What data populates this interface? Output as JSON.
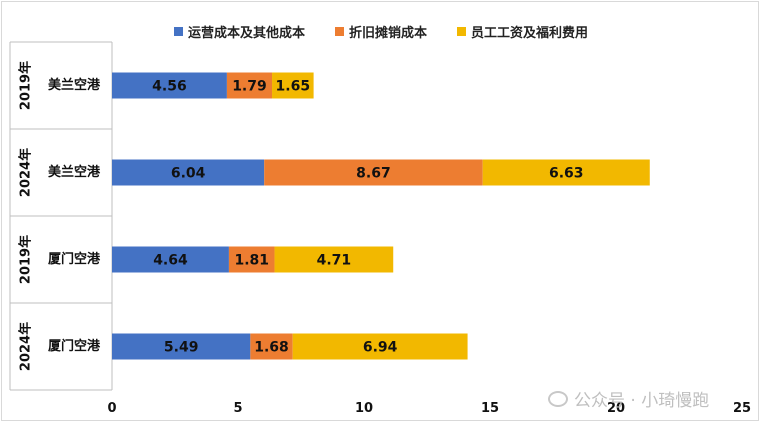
{
  "chart_data": {
    "type": "bar",
    "orientation": "horizontal",
    "stacked": true,
    "categories": [
      {
        "year": "2019年",
        "airport": "美兰空港"
      },
      {
        "year": "2024年",
        "airport": "美兰空港"
      },
      {
        "year": "2019年",
        "airport": "厦门空港"
      },
      {
        "year": "2024年",
        "airport": "厦门空港"
      }
    ],
    "series": [
      {
        "name": "运营成本及其他成本",
        "color": "#4472c4",
        "values": [
          4.56,
          6.04,
          4.64,
          5.49
        ]
      },
      {
        "name": "折旧摊销成本",
        "color": "#ed7d31",
        "values": [
          1.79,
          8.67,
          1.81,
          1.68
        ]
      },
      {
        "name": "员工工资及福利费用",
        "color": "#f2b800",
        "values": [
          1.65,
          6.63,
          4.71,
          6.94
        ]
      }
    ],
    "xlim": [
      0,
      25
    ],
    "xticks": [
      "0",
      "5",
      "10",
      "15",
      "20",
      "25"
    ],
    "legend": "top",
    "grid": false
  },
  "watermark": {
    "text": "公众号 · 小琦慢跑"
  }
}
